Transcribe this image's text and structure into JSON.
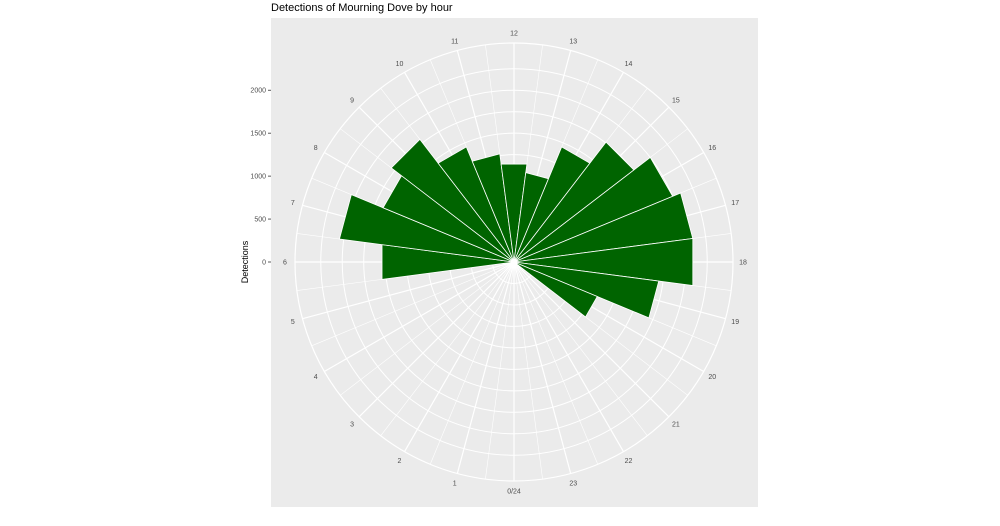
{
  "chart_data": {
    "type": "bar",
    "coord": "polar",
    "title": "Detections of Mourning Dove by hour",
    "xlabel": "",
    "ylabel": "Detections",
    "categories": [
      "0/24",
      "1",
      "2",
      "3",
      "4",
      "5",
      "6",
      "7",
      "8",
      "9",
      "10",
      "11",
      "12",
      "13",
      "14",
      "15",
      "16",
      "17",
      "18",
      "19",
      "20",
      "21",
      "22",
      "23"
    ],
    "values": [
      0,
      0,
      0,
      0,
      0,
      0,
      1550,
      2050,
      1650,
      1800,
      1450,
      1270,
      1150,
      1050,
      1450,
      1760,
      2000,
      2100,
      2100,
      1700,
      1050,
      0,
      0,
      0
    ],
    "yticks": [
      0,
      500,
      1000,
      1500,
      2000
    ],
    "ylim": [
      0,
      2550
    ],
    "grid": true,
    "fill_color": "#006400",
    "panel_color": "#ebebeb",
    "grid_color": "#ffffff"
  }
}
